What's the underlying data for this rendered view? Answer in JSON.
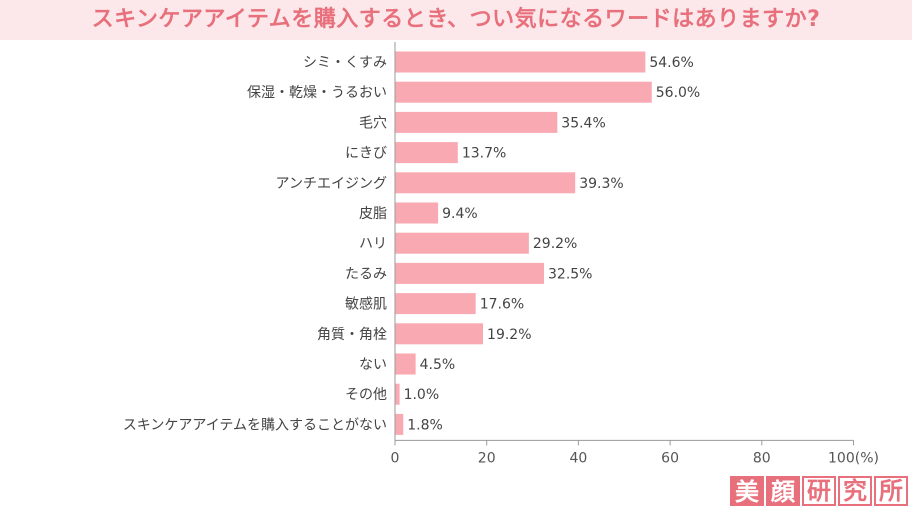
{
  "title": "スキンケアアイテムを購入するとき、つい気になるワードはありますか?",
  "logo": [
    "美",
    "顔",
    "研",
    "究",
    "所"
  ],
  "colors": {
    "bar": "#f9a9b2",
    "title": "#e8707c",
    "title_bg": "#fce8ea",
    "axis": "#999999"
  },
  "chart_data": {
    "type": "bar",
    "orientation": "horizontal",
    "categories": [
      "シミ・くすみ",
      "保湿・乾燥・うるおい",
      "毛穴",
      "にきび",
      "アンチエイジング",
      "皮脂",
      "ハリ",
      "たるみ",
      "敏感肌",
      "角質・角栓",
      "ない",
      "その他",
      "スキンケアアイテムを購入することがない"
    ],
    "values": [
      54.6,
      56.0,
      35.4,
      13.7,
      39.3,
      9.4,
      29.2,
      32.5,
      17.6,
      19.2,
      4.5,
      1.0,
      1.8
    ],
    "value_labels": [
      "54.6%",
      "56.0%",
      "35.4%",
      "13.7%",
      "39.3%",
      "9.4%",
      "29.2%",
      "32.5%",
      "17.6%",
      "19.2%",
      "4.5%",
      "1.0%",
      "1.8%"
    ],
    "x_ticks": [
      "0",
      "20",
      "40",
      "60",
      "80",
      "100(%)"
    ],
    "xlim": [
      0,
      100
    ],
    "grid": false
  }
}
